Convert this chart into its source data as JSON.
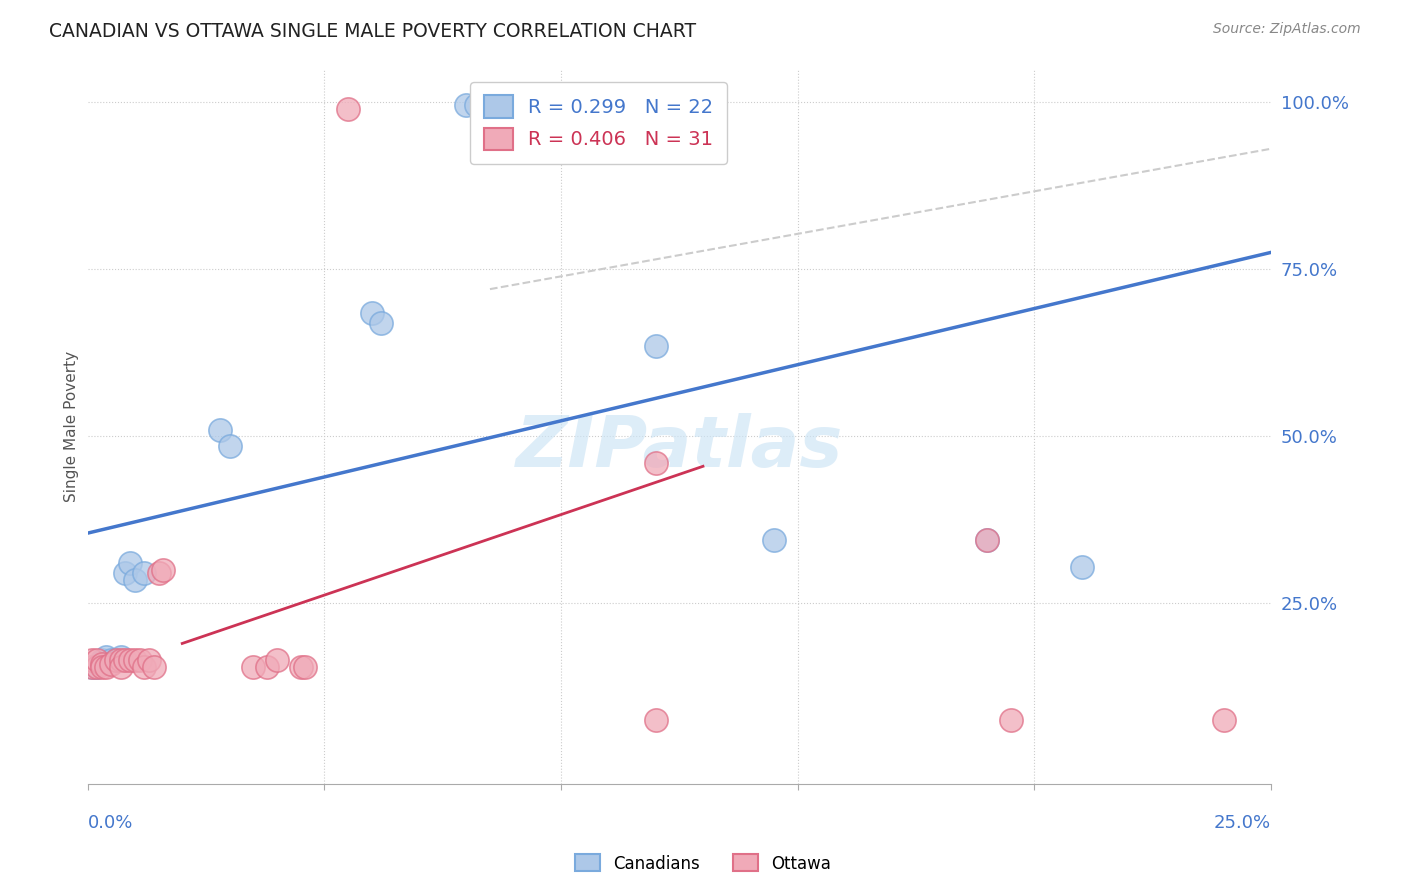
{
  "title": "CANADIAN VS OTTAWA SINGLE MALE POVERTY CORRELATION CHART",
  "source": "Source: ZipAtlas.com",
  "ylabel": "Single Male Poverty",
  "right_yticks": [
    "100.0%",
    "75.0%",
    "50.0%",
    "25.0%"
  ],
  "right_ytick_vals": [
    1.0,
    0.75,
    0.5,
    0.25
  ],
  "watermark": "ZIPatlas",
  "legend_blue_r": "R = 0.299",
  "legend_blue_n": "N = 22",
  "legend_pink_r": "R = 0.406",
  "legend_pink_n": "N = 31",
  "blue_scatter": [
    [
      0.001,
      0.155
    ],
    [
      0.002,
      0.155
    ],
    [
      0.003,
      0.165
    ],
    [
      0.004,
      0.17
    ],
    [
      0.005,
      0.165
    ],
    [
      0.006,
      0.165
    ],
    [
      0.007,
      0.17
    ],
    [
      0.008,
      0.295
    ],
    [
      0.009,
      0.31
    ],
    [
      0.01,
      0.285
    ],
    [
      0.012,
      0.295
    ],
    [
      0.028,
      0.51
    ],
    [
      0.03,
      0.485
    ],
    [
      0.06,
      0.685
    ],
    [
      0.062,
      0.67
    ],
    [
      0.08,
      0.995
    ],
    [
      0.082,
      0.995
    ],
    [
      0.085,
      0.995
    ],
    [
      0.12,
      0.635
    ],
    [
      0.145,
      0.345
    ],
    [
      0.19,
      0.345
    ],
    [
      0.21,
      0.305
    ]
  ],
  "pink_scatter": [
    [
      0.001,
      0.155
    ],
    [
      0.001,
      0.165
    ],
    [
      0.002,
      0.155
    ],
    [
      0.002,
      0.165
    ],
    [
      0.003,
      0.16
    ],
    [
      0.003,
      0.155
    ],
    [
      0.004,
      0.155
    ],
    [
      0.005,
      0.16
    ],
    [
      0.006,
      0.165
    ],
    [
      0.007,
      0.165
    ],
    [
      0.007,
      0.155
    ],
    [
      0.008,
      0.165
    ],
    [
      0.009,
      0.165
    ],
    [
      0.01,
      0.165
    ],
    [
      0.011,
      0.165
    ],
    [
      0.012,
      0.155
    ],
    [
      0.013,
      0.165
    ],
    [
      0.014,
      0.155
    ],
    [
      0.015,
      0.295
    ],
    [
      0.016,
      0.3
    ],
    [
      0.035,
      0.155
    ],
    [
      0.038,
      0.155
    ],
    [
      0.04,
      0.165
    ],
    [
      0.045,
      0.155
    ],
    [
      0.046,
      0.155
    ],
    [
      0.055,
      0.99
    ],
    [
      0.12,
      0.46
    ],
    [
      0.12,
      0.075
    ],
    [
      0.19,
      0.345
    ],
    [
      0.195,
      0.075
    ],
    [
      0.24,
      0.075
    ]
  ],
  "blue_line_pts": [
    [
      0.0,
      0.355
    ],
    [
      0.25,
      0.775
    ]
  ],
  "pink_line_pts": [
    [
      0.02,
      0.19
    ],
    [
      0.13,
      0.455
    ]
  ],
  "dashed_line_pts": [
    [
      0.085,
      0.72
    ],
    [
      0.25,
      0.93
    ]
  ],
  "blue_fill": "#adc8e8",
  "blue_edge": "#7aaadd",
  "pink_fill": "#f0aab8",
  "pink_edge": "#e07088",
  "blue_line_color": "#4477cc",
  "pink_line_color": "#cc3355",
  "dashed_line_color": "#cccccc",
  "xlim": [
    0.0,
    0.25
  ],
  "ylim": [
    -0.02,
    1.05
  ],
  "xticks": [
    0.0,
    0.05,
    0.1,
    0.15,
    0.2,
    0.25
  ],
  "figsize": [
    14.06,
    8.92
  ],
  "dpi": 100
}
